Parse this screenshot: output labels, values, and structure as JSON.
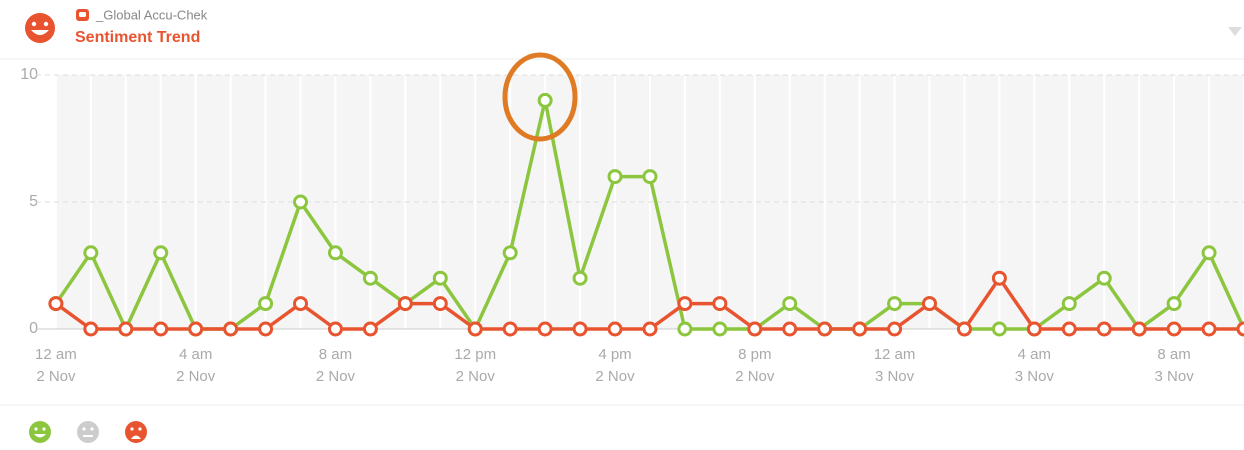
{
  "chart_data": {
    "type": "line",
    "source": "_Global Accu-Chek",
    "title": "Sentiment Trend",
    "x": [
      0,
      1,
      2,
      3,
      4,
      5,
      6,
      7,
      8,
      9,
      10,
      11,
      12,
      13,
      14,
      15,
      16,
      17,
      18,
      19,
      20,
      21,
      22,
      23,
      24,
      25,
      26,
      27,
      28,
      29,
      30,
      31,
      32,
      33,
      34
    ],
    "xlim": [
      -1.6,
      34
    ],
    "xticks": [
      {
        "value": 0,
        "label": "12 am",
        "sublabel": "2 Nov"
      },
      {
        "value": 4,
        "label": "4 am",
        "sublabel": "2 Nov"
      },
      {
        "value": 8,
        "label": "8 am",
        "sublabel": "2 Nov"
      },
      {
        "value": 12,
        "label": "12 pm",
        "sublabel": "2 Nov"
      },
      {
        "value": 16,
        "label": "4 pm",
        "sublabel": "2 Nov"
      },
      {
        "value": 20,
        "label": "8 pm",
        "sublabel": "2 Nov"
      },
      {
        "value": 24,
        "label": "12 am",
        "sublabel": "3 Nov"
      },
      {
        "value": 28,
        "label": "4 am",
        "sublabel": "3 Nov"
      },
      {
        "value": 32,
        "label": "8 am",
        "sublabel": "3 Nov"
      }
    ],
    "ylim": [
      0,
      10
    ],
    "yticks": [
      0,
      5,
      10
    ],
    "grid": true,
    "series": [
      {
        "color": "#8cc63f",
        "values": [
          1,
          3,
          0,
          3,
          0,
          0,
          1,
          5,
          3,
          2,
          1,
          2,
          0,
          3,
          9,
          2,
          6,
          6,
          0,
          0,
          0,
          1,
          0,
          0,
          1,
          1,
          0,
          0,
          0,
          1,
          2,
          0,
          1,
          3,
          0
        ]
      },
      {
        "color": "#e8542f",
        "values": [
          1,
          0,
          0,
          0,
          0,
          0,
          0,
          1,
          0,
          0,
          1,
          1,
          0,
          0,
          0,
          0,
          0,
          0,
          1,
          1,
          0,
          0,
          0,
          0,
          0,
          1,
          0,
          2,
          0,
          0,
          0,
          0,
          0,
          0,
          0
        ]
      }
    ]
  }
}
